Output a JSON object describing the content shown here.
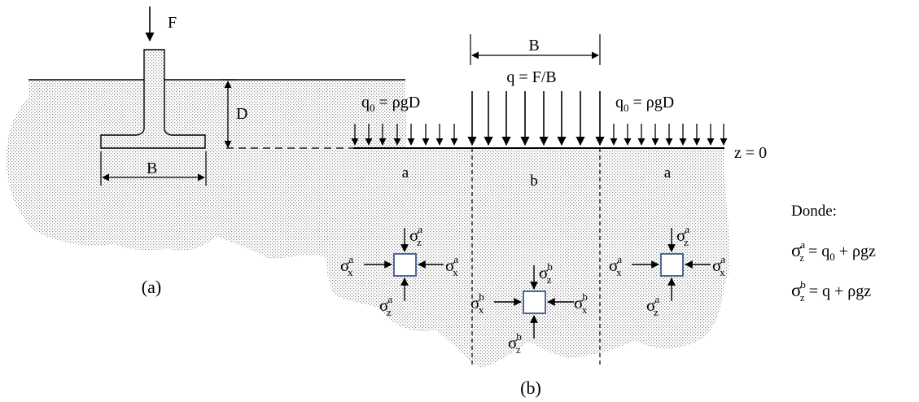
{
  "panel_a": {
    "force_label": "F",
    "depth_label": "D",
    "width_label": "B",
    "caption": "(a)"
  },
  "panel_b": {
    "width_label": "B",
    "load_label": "q = F/B",
    "side_load_left": {
      "base": "q",
      "sub": "0",
      "rest": " = ρgD"
    },
    "side_load_right": {
      "base": "q",
      "sub": "0",
      "rest": " = ρgD"
    },
    "surface_label": "z = 0",
    "region_left": "a",
    "region_center": "b",
    "region_right": "a",
    "caption": "(b)",
    "stress_symbol": "σ",
    "sub_x": "x",
    "sub_z": "z",
    "sup_a": "a",
    "sup_b": "b"
  },
  "legend": {
    "title": "Donde:",
    "eq_a": {
      "sigma": "σ",
      "sub": "z",
      "sup": "a",
      "rhs_1": " = q",
      "rhs_sub": "0",
      "rhs_2": " + ρgz"
    },
    "eq_b": {
      "sigma": "σ",
      "sub": "z",
      "sup": "b",
      "rhs": " = q + ρgz"
    }
  },
  "colors": {
    "soil_dot": "#8a8a8a",
    "element_border": "#3c5a8c",
    "ink": "#000000"
  }
}
